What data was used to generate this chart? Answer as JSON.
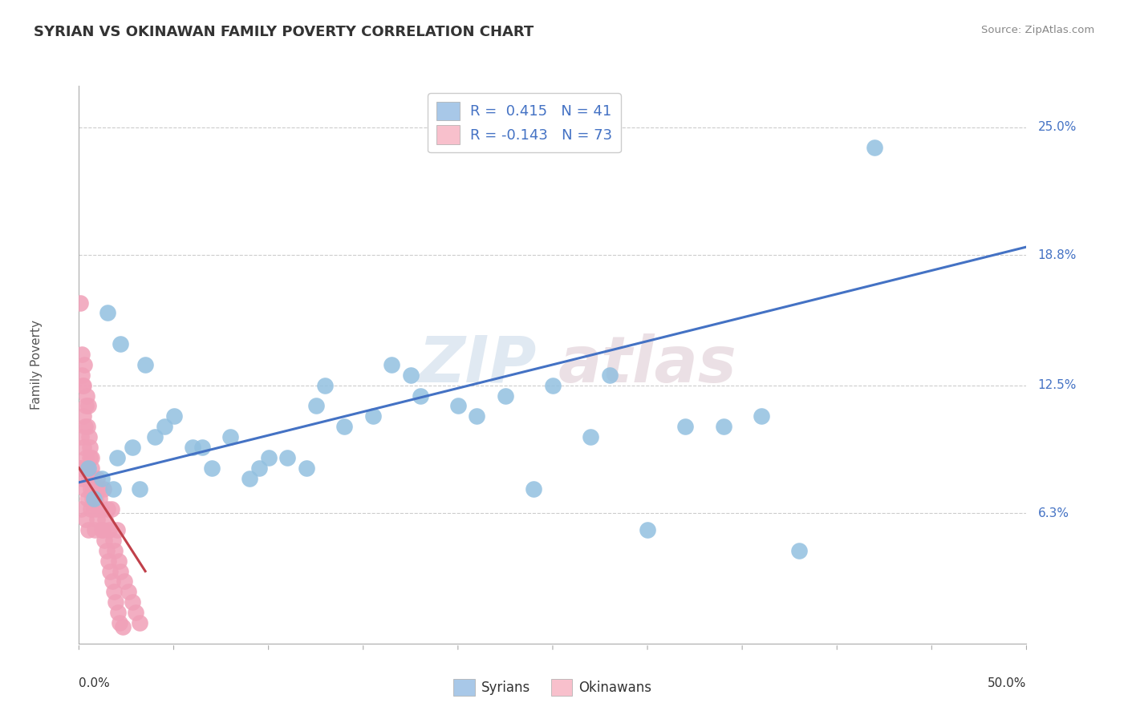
{
  "title": "SYRIAN VS OKINAWAN FAMILY POVERTY CORRELATION CHART",
  "source": "Source: ZipAtlas.com",
  "ylabel": "Family Poverty",
  "ytick_labels": [
    "6.3%",
    "12.5%",
    "18.8%",
    "25.0%"
  ],
  "ytick_values": [
    6.3,
    12.5,
    18.8,
    25.0
  ],
  "xlim": [
    0.0,
    50.0
  ],
  "ylim": [
    0.0,
    27.0
  ],
  "syrian_color": "#92c0e0",
  "okinawan_color": "#f0a0b8",
  "syrian_line_color": "#4472c4",
  "okinawan_line_color": "#c0404a",
  "syrian_line_x0": 0.0,
  "syrian_line_y0": 7.8,
  "syrian_line_x1": 50.0,
  "syrian_line_y1": 19.2,
  "okinawan_line_x0": 0.0,
  "okinawan_line_y0": 8.5,
  "okinawan_line_x1": 3.5,
  "okinawan_line_y1": 3.5,
  "syrians_x": [
    0.8,
    1.5,
    2.2,
    3.5,
    5.0,
    6.5,
    8.0,
    9.5,
    11.0,
    12.5,
    14.0,
    15.5,
    17.5,
    20.0,
    22.5,
    25.0,
    28.0,
    32.0,
    36.0,
    42.0,
    1.2,
    2.8,
    4.5,
    7.0,
    10.0,
    13.0,
    16.5,
    21.0,
    27.0,
    34.0,
    1.8,
    3.2,
    6.0,
    9.0,
    12.0,
    18.0,
    24.0,
    30.0,
    38.0,
    0.5,
    2.0,
    4.0
  ],
  "syrians_y": [
    7.0,
    16.0,
    14.5,
    13.5,
    11.0,
    9.5,
    10.0,
    8.5,
    9.0,
    11.5,
    10.5,
    11.0,
    13.0,
    11.5,
    12.0,
    12.5,
    13.0,
    10.5,
    11.0,
    24.0,
    8.0,
    9.5,
    10.5,
    8.5,
    9.0,
    12.5,
    13.5,
    11.0,
    10.0,
    10.5,
    7.5,
    7.5,
    9.5,
    8.0,
    8.5,
    12.0,
    7.5,
    5.5,
    4.5,
    8.5,
    9.0,
    10.0
  ],
  "okinawans_x": [
    0.05,
    0.08,
    0.1,
    0.12,
    0.15,
    0.18,
    0.2,
    0.22,
    0.25,
    0.28,
    0.3,
    0.32,
    0.35,
    0.38,
    0.4,
    0.42,
    0.45,
    0.48,
    0.5,
    0.52,
    0.55,
    0.58,
    0.6,
    0.62,
    0.65,
    0.68,
    0.7,
    0.75,
    0.8,
    0.85,
    0.9,
    0.95,
    1.0,
    1.1,
    1.2,
    1.3,
    1.4,
    1.5,
    1.6,
    1.7,
    1.8,
    1.9,
    2.0,
    2.1,
    2.2,
    2.4,
    2.6,
    2.8,
    3.0,
    3.2,
    0.06,
    0.14,
    0.23,
    0.36,
    0.46,
    0.56,
    0.66,
    0.76,
    0.86,
    0.96,
    1.05,
    1.15,
    1.25,
    1.35,
    1.45,
    1.55,
    1.65,
    1.75,
    1.85,
    1.95,
    2.05,
    2.15,
    2.3
  ],
  "okinawans_y": [
    8.5,
    16.5,
    6.5,
    10.0,
    14.0,
    8.0,
    12.5,
    11.0,
    9.5,
    13.5,
    7.5,
    10.5,
    6.0,
    9.0,
    12.0,
    8.5,
    7.0,
    11.5,
    5.5,
    10.0,
    8.0,
    9.5,
    7.5,
    6.5,
    8.5,
    9.0,
    7.0,
    8.0,
    6.5,
    5.5,
    7.5,
    8.0,
    6.5,
    7.0,
    5.5,
    7.5,
    6.0,
    6.5,
    5.5,
    6.5,
    5.0,
    4.5,
    5.5,
    4.0,
    3.5,
    3.0,
    2.5,
    2.0,
    1.5,
    1.0,
    8.5,
    13.0,
    12.5,
    11.5,
    10.5,
    9.0,
    8.0,
    7.5,
    7.0,
    6.0,
    7.5,
    6.5,
    5.5,
    5.0,
    4.5,
    4.0,
    3.5,
    3.0,
    2.5,
    2.0,
    1.5,
    1.0,
    0.8
  ]
}
